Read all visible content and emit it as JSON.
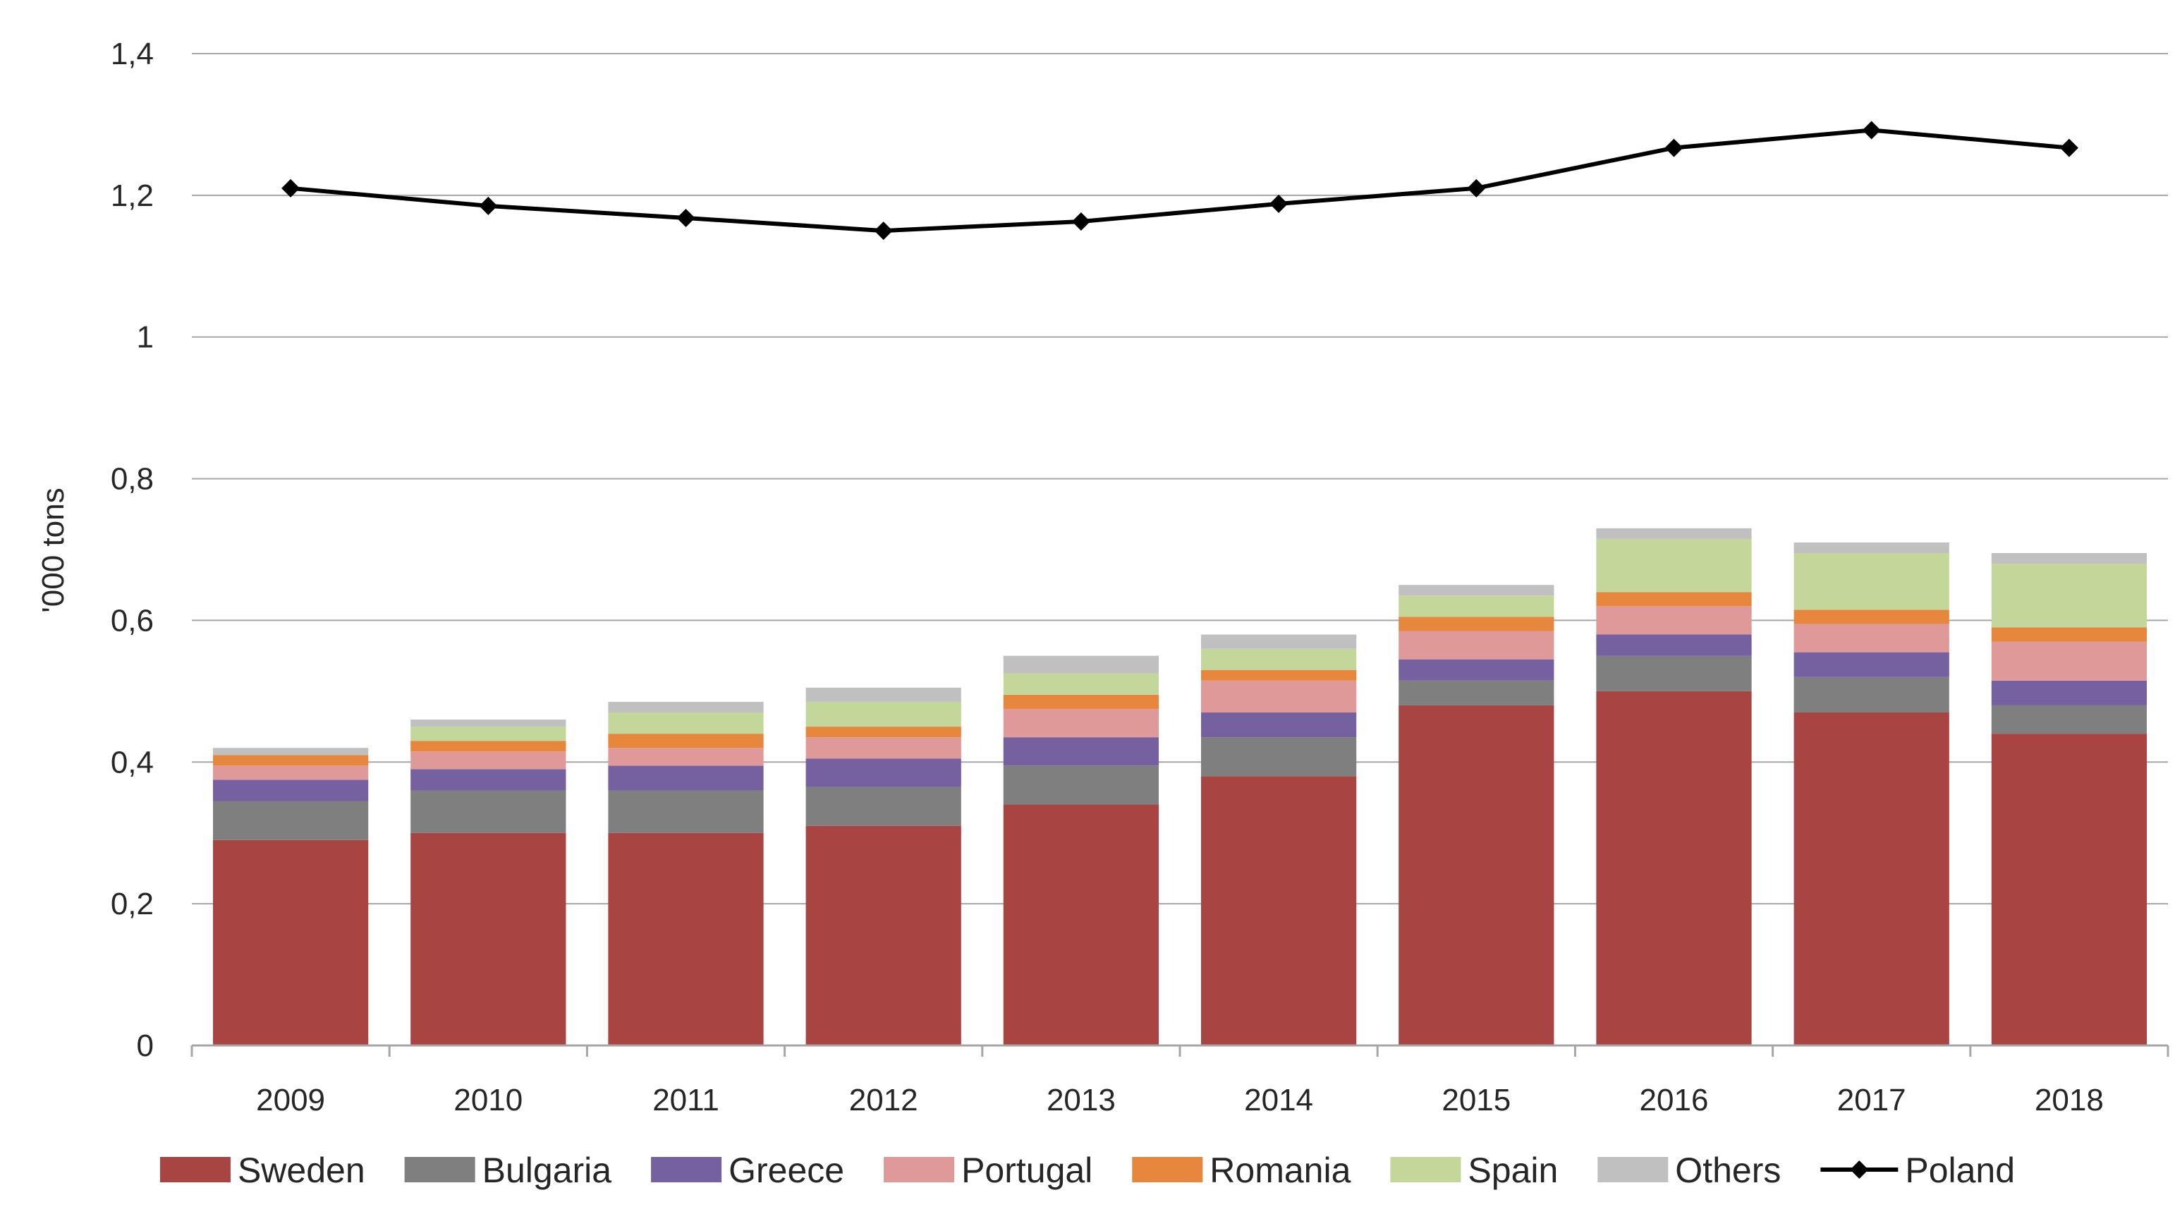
{
  "chart_data": {
    "type": "bar",
    "stacked": true,
    "title": "",
    "xlabel": "",
    "ylabel": "'000 tons",
    "ylim": [
      0,
      1.4
    ],
    "yticks": [
      0,
      0.2,
      0.4,
      0.6,
      0.8,
      1,
      1.2,
      1.4
    ],
    "ytick_labels": [
      "0",
      "0,2",
      "0,4",
      "0,6",
      "0,8",
      "1",
      "1,2",
      "1,4"
    ],
    "grid": true,
    "legend_position": "bottom",
    "categories": [
      "2009",
      "2010",
      "2011",
      "2012",
      "2013",
      "2014",
      "2015",
      "2016",
      "2017",
      "2018"
    ],
    "series": [
      {
        "name": "Sweden",
        "kind": "bar",
        "color": "#A84442",
        "values": [
          0.29,
          0.3,
          0.3,
          0.31,
          0.34,
          0.38,
          0.48,
          0.5,
          0.47,
          0.44
        ]
      },
      {
        "name": "Bulgaria",
        "kind": "bar",
        "color": "#7F7F7F",
        "values": [
          0.055,
          0.06,
          0.06,
          0.055,
          0.055,
          0.055,
          0.035,
          0.05,
          0.05,
          0.04
        ]
      },
      {
        "name": "Greece",
        "kind": "bar",
        "color": "#7560A0",
        "values": [
          0.03,
          0.03,
          0.035,
          0.04,
          0.04,
          0.035,
          0.03,
          0.03,
          0.035,
          0.035
        ]
      },
      {
        "name": "Portugal",
        "kind": "bar",
        "color": "#E09999",
        "values": [
          0.02,
          0.025,
          0.025,
          0.03,
          0.04,
          0.045,
          0.04,
          0.04,
          0.04,
          0.055
        ]
      },
      {
        "name": "Romania",
        "kind": "bar",
        "color": "#E6873D",
        "values": [
          0.015,
          0.015,
          0.02,
          0.015,
          0.02,
          0.015,
          0.02,
          0.02,
          0.02,
          0.02
        ]
      },
      {
        "name": "Spain",
        "kind": "bar",
        "color": "#C4D79B",
        "values": [
          0.0,
          0.02,
          0.03,
          0.035,
          0.03,
          0.03,
          0.03,
          0.075,
          0.08,
          0.09
        ]
      },
      {
        "name": "Others",
        "kind": "bar",
        "color": "#C0C0C0",
        "values": [
          0.01,
          0.01,
          0.015,
          0.02,
          0.025,
          0.02,
          0.015,
          0.015,
          0.015,
          0.015
        ]
      },
      {
        "name": "Poland",
        "kind": "line",
        "color": "#000000",
        "values": [
          1.21,
          1.185,
          1.168,
          1.15,
          1.163,
          1.188,
          1.21,
          1.267,
          1.292,
          1.267
        ]
      }
    ]
  }
}
